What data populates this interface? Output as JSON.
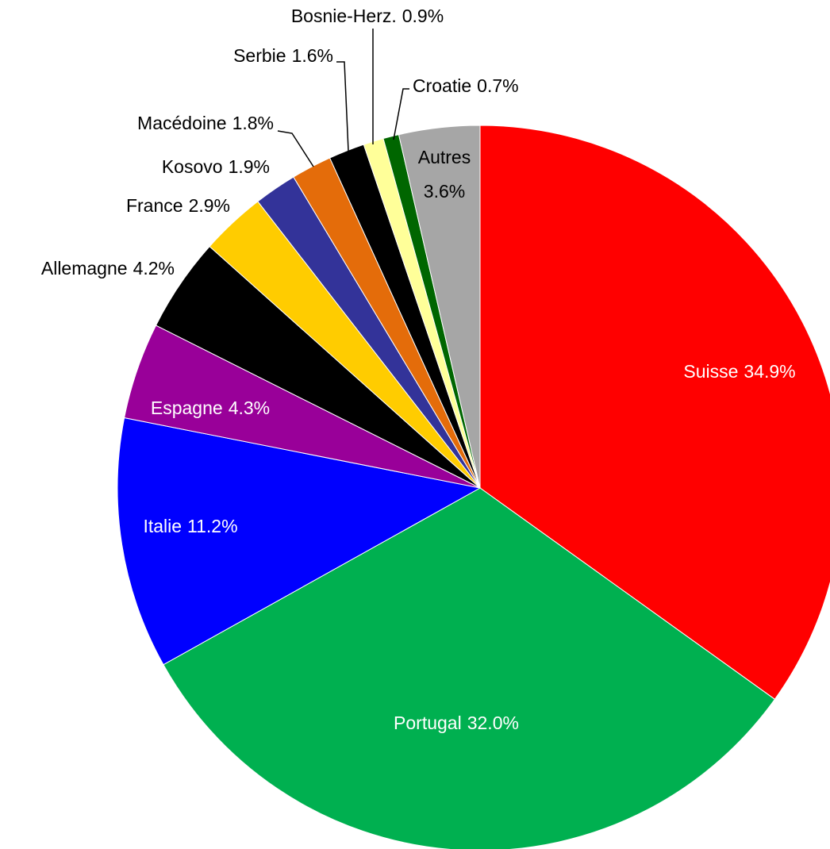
{
  "chart_data": {
    "type": "pie",
    "categories": [
      "Suisse",
      "Portugal",
      "Italie",
      "Espagne",
      "Allemagne",
      "France",
      "Kosovo",
      "Macédoine",
      "Serbie",
      "Bosnie-Herz.",
      "Croatie",
      "Autres"
    ],
    "values": [
      34.9,
      32.0,
      11.2,
      4.3,
      4.2,
      2.9,
      1.9,
      1.8,
      1.6,
      0.9,
      0.7,
      3.6
    ],
    "value_labels": [
      "34.9%",
      "32.0%",
      "11.2%",
      "4.3%",
      "4.2%",
      "2.9%",
      "1.9%",
      "1.8%",
      "1.6%",
      "0.9%",
      "0.7%",
      "3.6%"
    ],
    "colors": [
      "#ff0000",
      "#00b050",
      "#0000ff",
      "#990099",
      "#000000",
      "#ffcc00",
      "#333399",
      "#e46c0a",
      "#000000",
      "#ffff99",
      "#006600",
      "#a6a6a6"
    ]
  }
}
